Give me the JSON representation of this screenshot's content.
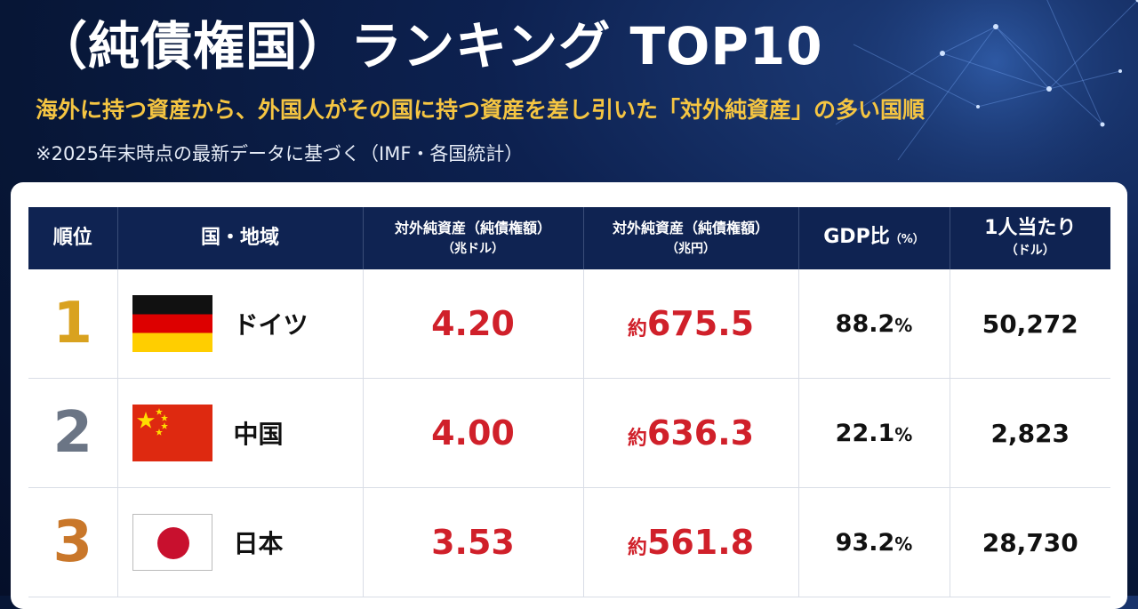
{
  "header": {
    "title": "（純債権国）ランキング TOP10",
    "subtitle": "海外に持つ資産から、外国人がその国に持つ資産を差し引いた「対外純資産」の多い国順",
    "note": "※2025年末時点の最新データに基づく（IMF・各国統計）"
  },
  "table": {
    "headers": {
      "rank": "順位",
      "country": "国・地域",
      "usd_line1": "対外純資産（純債権額）",
      "usd_line2": "（兆ドル）",
      "yen_line1": "対外純資産（純債権額）",
      "yen_line2": "（兆円）",
      "gdp_main": "GDP比",
      "gdp_unit": "（%）",
      "percap_line1": "1人当たり",
      "percap_line2": "（ドル）"
    },
    "rows": [
      {
        "rank": "1",
        "country": "ドイツ",
        "flag": "germany-flag",
        "usd": "4.20",
        "yen_prefix": "約",
        "yen": "675.5",
        "gdp": "88.2",
        "gdp_pct": "%",
        "per_capita": "50,272"
      },
      {
        "rank": "2",
        "country": "中国",
        "flag": "china-flag",
        "usd": "4.00",
        "yen_prefix": "約",
        "yen": "636.3",
        "gdp": "22.1",
        "gdp_pct": "%",
        "per_capita": "2,823"
      },
      {
        "rank": "3",
        "country": "日本",
        "flag": "japan-flag",
        "usd": "3.53",
        "yen_prefix": "約",
        "yen": "561.8",
        "gdp": "93.2",
        "gdp_pct": "%",
        "per_capita": "28,730"
      }
    ]
  },
  "colors": {
    "background": "#071636",
    "title": "#ffffff",
    "subtitle": "#f5c542",
    "header_bg": "#0f2352",
    "value_red": "#d0202a",
    "rank_gold": "#d9a21f",
    "rank_silver": "#6b7585",
    "rank_bronze": "#c9772a"
  }
}
